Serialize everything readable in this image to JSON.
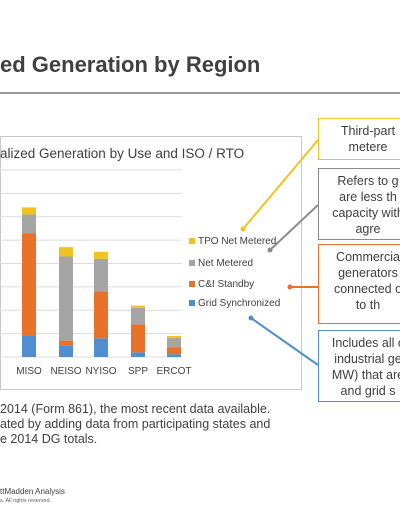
{
  "page": {
    "title": "ed Generation by Region",
    "footnote_lines": [
      "2014 (Form 861), the most recent data available.",
      "ated by adding data from participating states and",
      "e 2014 DG totals."
    ],
    "source": "ttMadden Analysis",
    "copyright": "s. All rights reserved."
  },
  "callouts": [
    {
      "lines": [
        "Third-part",
        "metere"
      ],
      "color": "#f0c31e"
    },
    {
      "lines": [
        "Refers to g",
        "are less th",
        "capacity with",
        "agre"
      ],
      "color": "#8c8c8c"
    },
    {
      "lines": [
        "Commercia",
        "generators",
        "connected o",
        "to th"
      ],
      "color": "#e8722a"
    },
    {
      "lines": [
        "Includes all c",
        "industrial ge",
        "MW) that are",
        "and grid s"
      ],
      "color": "#4f8fcf"
    }
  ],
  "chart_data": {
    "type": "bar",
    "stacked": true,
    "title": "alized Generation by Use and ISO / RTO",
    "categories": [
      "...",
      "MISO",
      "NEISO",
      "NYISO",
      "SPP",
      "ERCOT"
    ],
    "category_labels": [
      "I",
      "MISO",
      "NEISO",
      "NYISO",
      "SPP",
      "ERCOT"
    ],
    "series": [
      {
        "name": "Grid Synchronized",
        "color": "#4f8fcf",
        "values": [
          0,
          4.5,
          2.5,
          4.0,
          1.0,
          0.6
        ]
      },
      {
        "name": "C&I Standby",
        "color": "#e8722a",
        "values": [
          0,
          22.0,
          1.0,
          10.0,
          6.0,
          1.5
        ]
      },
      {
        "name": "Net Metered",
        "color": "#a5a5a5",
        "values": [
          0,
          4.0,
          18.0,
          7.0,
          3.5,
          2.0
        ]
      },
      {
        "name": "TPO Net Metered",
        "color": "#f0c31e",
        "values": [
          0,
          1.5,
          2.0,
          1.5,
          0.5,
          0.4
        ]
      }
    ],
    "legend_order": [
      "TPO Net Metered",
      "Net Metered",
      "C&I Standby",
      "Grid Synchronized"
    ],
    "legend_position": "right",
    "ylim": [
      0,
      40
    ],
    "grid": true
  }
}
